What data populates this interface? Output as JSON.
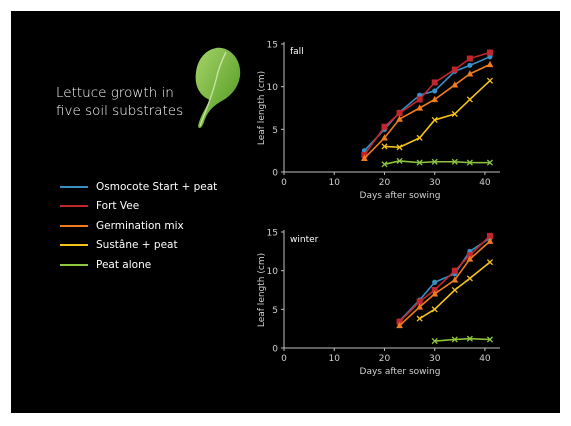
{
  "slide": {
    "title_lines": [
      "Lettuce growth in",
      "five soil substrates"
    ],
    "background": "#000000"
  },
  "legend": [
    {
      "label": "Osmocote Start + peat",
      "color": "#3a8fc4"
    },
    {
      "label": "Fort Vee",
      "color": "#c0262c"
    },
    {
      "label": "Germination mix",
      "color": "#f07c1e"
    },
    {
      "label": "Sustâne + peat",
      "color": "#f6c21a"
    },
    {
      "label": "Peat alone",
      "color": "#8dc63f"
    }
  ],
  "chart_data": [
    {
      "type": "line",
      "panel_label": "fall",
      "xlabel": "Days after sowing",
      "ylabel": "Leaf length (cm)",
      "xlim": [
        0,
        43
      ],
      "ylim": [
        0,
        15
      ],
      "xticks": [
        0,
        10,
        20,
        30,
        40
      ],
      "yticks": [
        0,
        5,
        10,
        15
      ],
      "series": [
        {
          "name": "Osmocote Start + peat",
          "color": "#3a8fc4",
          "marker": "circle",
          "x": [
            16,
            20,
            23,
            27,
            30,
            34,
            37,
            41
          ],
          "y": [
            2.5,
            5.0,
            7.0,
            9.0,
            9.5,
            11.8,
            12.5,
            13.5
          ]
        },
        {
          "name": "Fort Vee",
          "color": "#c0262c",
          "marker": "square",
          "x": [
            16,
            20,
            23,
            27,
            30,
            34,
            37,
            41
          ],
          "y": [
            2.0,
            5.3,
            6.9,
            8.5,
            10.5,
            12.0,
            13.3,
            14.0
          ]
        },
        {
          "name": "Germination mix",
          "color": "#f07c1e",
          "marker": "triangle",
          "x": [
            16,
            20,
            23,
            27,
            30,
            34,
            37,
            41
          ],
          "y": [
            1.6,
            4.0,
            6.2,
            7.5,
            8.5,
            10.2,
            11.5,
            12.6
          ]
        },
        {
          "name": "Sustâne + peat",
          "color": "#f6c21a",
          "marker": "x",
          "x": [
            20,
            23,
            27,
            30,
            34,
            37,
            41
          ],
          "y": [
            3.0,
            2.9,
            4.0,
            6.1,
            6.8,
            8.5,
            10.7
          ]
        },
        {
          "name": "Peat alone",
          "color": "#8dc63f",
          "marker": "x",
          "x": [
            20,
            23,
            27,
            30,
            34,
            37,
            41
          ],
          "y": [
            0.9,
            1.3,
            1.1,
            1.2,
            1.2,
            1.1,
            1.1
          ]
        }
      ]
    },
    {
      "type": "line",
      "panel_label": "winter",
      "xlabel": "Days after sowing",
      "ylabel": "Leaf length (cm)",
      "xlim": [
        0,
        43
      ],
      "ylim": [
        0,
        15
      ],
      "xticks": [
        0,
        10,
        20,
        30,
        40
      ],
      "yticks": [
        0,
        5,
        10,
        15
      ],
      "series": [
        {
          "name": "Osmocote Start + peat",
          "color": "#3a8fc4",
          "marker": "circle",
          "x": [
            23,
            27,
            30,
            34,
            37,
            41
          ],
          "y": [
            3.5,
            6.2,
            8.5,
            9.6,
            12.5,
            14.2
          ]
        },
        {
          "name": "Fort Vee",
          "color": "#c0262c",
          "marker": "square",
          "x": [
            23,
            27,
            30,
            34,
            37,
            41
          ],
          "y": [
            3.4,
            6.0,
            7.5,
            10.0,
            12.0,
            14.5
          ]
        },
        {
          "name": "Germination mix",
          "color": "#f07c1e",
          "marker": "triangle",
          "x": [
            23,
            27,
            30,
            34,
            37,
            41
          ],
          "y": [
            2.9,
            5.3,
            7.0,
            8.8,
            11.5,
            13.8
          ]
        },
        {
          "name": "Sustâne + peat",
          "color": "#f6c21a",
          "marker": "x",
          "x": [
            27,
            30,
            34,
            37,
            41
          ],
          "y": [
            3.8,
            5.0,
            7.5,
            9.0,
            11.1
          ]
        },
        {
          "name": "Peat alone",
          "color": "#8dc63f",
          "marker": "x",
          "x": [
            30,
            34,
            37,
            41
          ],
          "y": [
            0.9,
            1.1,
            1.2,
            1.1
          ]
        }
      ]
    }
  ]
}
